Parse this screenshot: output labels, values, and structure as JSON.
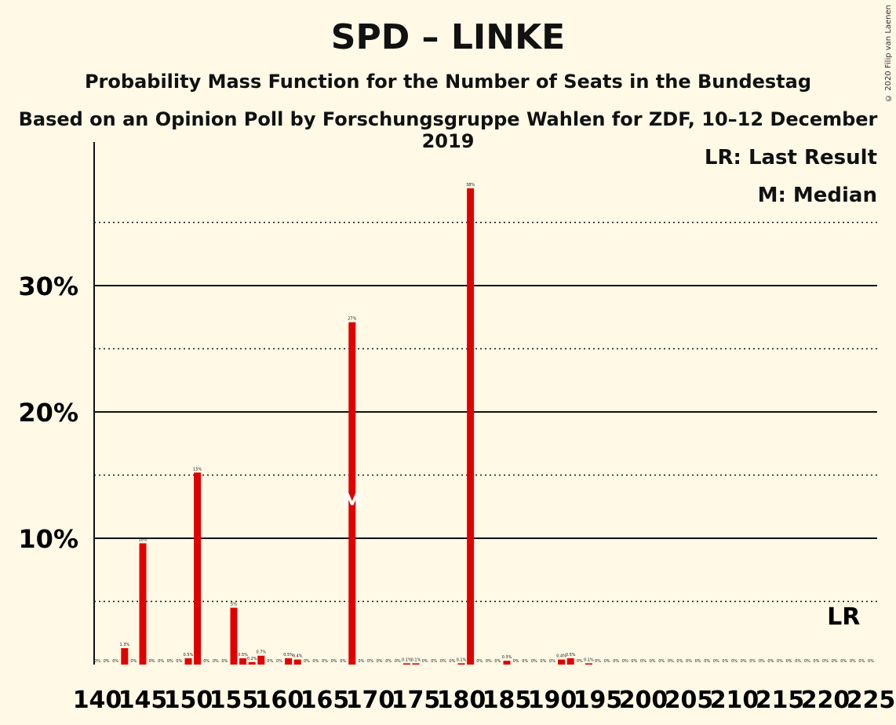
{
  "chart_data": {
    "type": "bar",
    "title": "SPD – LINKE",
    "subtitle": "Probability Mass Function for the Number of Seats in the Bundestag",
    "source": "Based on an Opinion Poll by Forschungsgruppe Wahlen for ZDF, 10–12 December 2019",
    "copyright": "© 2020 Filip van Laenen",
    "legend": {
      "last_result": "LR: Last Result",
      "median": "M: Median"
    },
    "x_range": [
      140,
      225
    ],
    "x_ticks": [
      140,
      145,
      150,
      155,
      160,
      165,
      170,
      175,
      180,
      185,
      190,
      195,
      200,
      205,
      210,
      215,
      220,
      225
    ],
    "y_range": [
      0,
      40
    ],
    "y_ticks": [
      {
        "value": 10,
        "label": "10%"
      },
      {
        "value": 20,
        "label": "20%"
      },
      {
        "value": 30,
        "label": "30%"
      }
    ],
    "grid": {
      "solid": [
        10,
        20,
        30
      ],
      "dotted": [
        5,
        15,
        25,
        35
      ]
    },
    "median_seat": 168,
    "median_marker": "M",
    "last_result_seat": 222,
    "last_result_marker": "LR",
    "color": "#E00000",
    "bars": [
      {
        "x": 140,
        "value": 0,
        "label": "0%"
      },
      {
        "x": 141,
        "value": 0,
        "label": "0%"
      },
      {
        "x": 142,
        "value": 0,
        "label": "0%"
      },
      {
        "x": 143,
        "value": 1.3,
        "label": "1.3%"
      },
      {
        "x": 144,
        "value": 0,
        "label": "0%"
      },
      {
        "x": 145,
        "value": 9.6,
        "label": "10%"
      },
      {
        "x": 146,
        "value": 0,
        "label": "0%"
      },
      {
        "x": 147,
        "value": 0,
        "label": "0%"
      },
      {
        "x": 148,
        "value": 0,
        "label": "0%"
      },
      {
        "x": 149,
        "value": 0,
        "label": "0%"
      },
      {
        "x": 150,
        "value": 0.5,
        "label": "0.5%"
      },
      {
        "x": 151,
        "value": 15.2,
        "label": "15%"
      },
      {
        "x": 152,
        "value": 0,
        "label": "0%"
      },
      {
        "x": 153,
        "value": 0,
        "label": "0%"
      },
      {
        "x": 154,
        "value": 0,
        "label": "0%"
      },
      {
        "x": 155,
        "value": 4.5,
        "label": "5%"
      },
      {
        "x": 156,
        "value": 0.5,
        "label": "0.5%"
      },
      {
        "x": 157,
        "value": 0.2,
        "label": "0.2%"
      },
      {
        "x": 158,
        "value": 0.7,
        "label": "0.7%"
      },
      {
        "x": 159,
        "value": 0,
        "label": "0%"
      },
      {
        "x": 160,
        "value": 0,
        "label": "0%"
      },
      {
        "x": 161,
        "value": 0.5,
        "label": "0.5%"
      },
      {
        "x": 162,
        "value": 0.4,
        "label": "0.4%"
      },
      {
        "x": 163,
        "value": 0,
        "label": "0%"
      },
      {
        "x": 164,
        "value": 0,
        "label": "0%"
      },
      {
        "x": 165,
        "value": 0,
        "label": "0%"
      },
      {
        "x": 166,
        "value": 0,
        "label": "0%"
      },
      {
        "x": 167,
        "value": 0,
        "label": "0%"
      },
      {
        "x": 168,
        "value": 27.1,
        "label": "27%"
      },
      {
        "x": 169,
        "value": 0,
        "label": "0%"
      },
      {
        "x": 170,
        "value": 0,
        "label": "0%"
      },
      {
        "x": 171,
        "value": 0,
        "label": "0%"
      },
      {
        "x": 172,
        "value": 0,
        "label": "0%"
      },
      {
        "x": 173,
        "value": 0,
        "label": "0%"
      },
      {
        "x": 174,
        "value": 0.1,
        "label": "0.1%"
      },
      {
        "x": 175,
        "value": 0.1,
        "label": "0.1%"
      },
      {
        "x": 176,
        "value": 0,
        "label": "0%"
      },
      {
        "x": 177,
        "value": 0,
        "label": "0%"
      },
      {
        "x": 178,
        "value": 0,
        "label": "0%"
      },
      {
        "x": 179,
        "value": 0,
        "label": "0%"
      },
      {
        "x": 180,
        "value": 0.1,
        "label": "0.1%"
      },
      {
        "x": 181,
        "value": 37.7,
        "label": "38%"
      },
      {
        "x": 182,
        "value": 0,
        "label": "0%"
      },
      {
        "x": 183,
        "value": 0,
        "label": "0%"
      },
      {
        "x": 184,
        "value": 0,
        "label": "0%"
      },
      {
        "x": 185,
        "value": 0.3,
        "label": "0.3%"
      },
      {
        "x": 186,
        "value": 0,
        "label": "0%"
      },
      {
        "x": 187,
        "value": 0,
        "label": "0%"
      },
      {
        "x": 188,
        "value": 0,
        "label": "0%"
      },
      {
        "x": 189,
        "value": 0,
        "label": "0%"
      },
      {
        "x": 190,
        "value": 0,
        "label": "0%"
      },
      {
        "x": 191,
        "value": 0.4,
        "label": "0.4%"
      },
      {
        "x": 192,
        "value": 0.5,
        "label": "0.5%"
      },
      {
        "x": 193,
        "value": 0,
        "label": "0%"
      },
      {
        "x": 194,
        "value": 0.1,
        "label": "0.1%"
      },
      {
        "x": 195,
        "value": 0,
        "label": "0%"
      },
      {
        "x": 196,
        "value": 0,
        "label": "0%"
      },
      {
        "x": 197,
        "value": 0,
        "label": "0%"
      },
      {
        "x": 198,
        "value": 0,
        "label": "0%"
      },
      {
        "x": 199,
        "value": 0,
        "label": "0%"
      },
      {
        "x": 200,
        "value": 0,
        "label": "0%"
      },
      {
        "x": 201,
        "value": 0,
        "label": "0%"
      },
      {
        "x": 202,
        "value": 0,
        "label": "0%"
      },
      {
        "x": 203,
        "value": 0,
        "label": "0%"
      },
      {
        "x": 204,
        "value": 0,
        "label": "0%"
      },
      {
        "x": 205,
        "value": 0,
        "label": "0%"
      },
      {
        "x": 206,
        "value": 0,
        "label": "0%"
      },
      {
        "x": 207,
        "value": 0,
        "label": "0%"
      },
      {
        "x": 208,
        "value": 0,
        "label": "0%"
      },
      {
        "x": 209,
        "value": 0,
        "label": "0%"
      },
      {
        "x": 210,
        "value": 0,
        "label": "0%"
      },
      {
        "x": 211,
        "value": 0,
        "label": "0%"
      },
      {
        "x": 212,
        "value": 0,
        "label": "0%"
      },
      {
        "x": 213,
        "value": 0,
        "label": "0%"
      },
      {
        "x": 214,
        "value": 0,
        "label": "0%"
      },
      {
        "x": 215,
        "value": 0,
        "label": "0%"
      },
      {
        "x": 216,
        "value": 0,
        "label": "0%"
      },
      {
        "x": 217,
        "value": 0,
        "label": "0%"
      },
      {
        "x": 218,
        "value": 0,
        "label": "0%"
      },
      {
        "x": 219,
        "value": 0,
        "label": "0%"
      },
      {
        "x": 220,
        "value": 0,
        "label": "0%"
      },
      {
        "x": 221,
        "value": 0,
        "label": "0%"
      },
      {
        "x": 222,
        "value": 0,
        "label": "0%"
      },
      {
        "x": 223,
        "value": 0,
        "label": "0%"
      },
      {
        "x": 224,
        "value": 0,
        "label": "0%"
      },
      {
        "x": 225,
        "value": 0,
        "label": "0%"
      }
    ]
  }
}
